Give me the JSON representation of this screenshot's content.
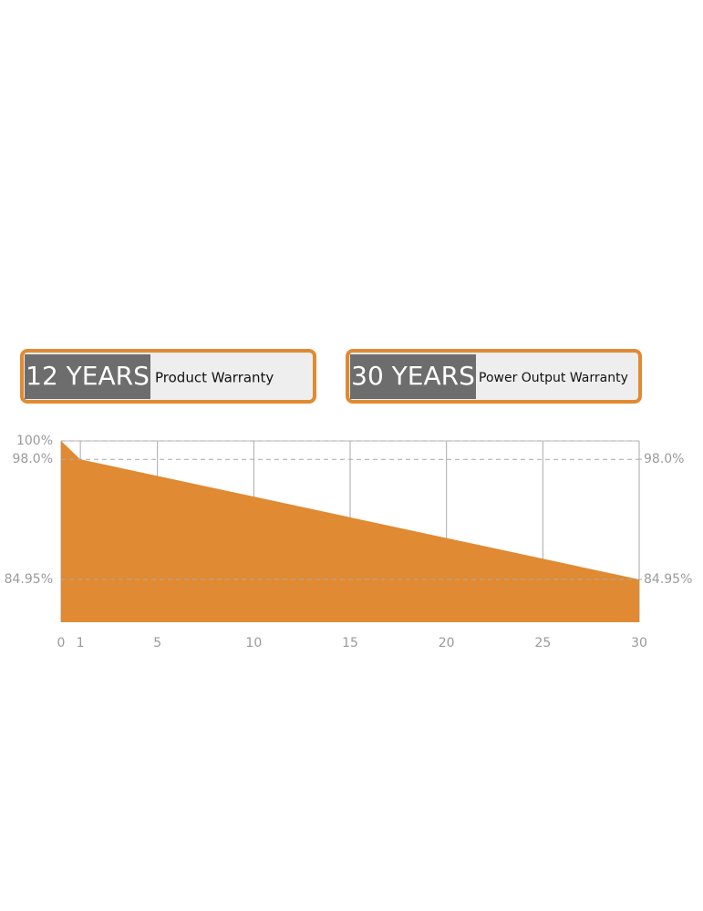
{
  "badges": [
    {
      "years": "12 YEARS",
      "label": "Product Warranty"
    },
    {
      "years": "30 YEARS",
      "label": "Power Output Warranty"
    }
  ],
  "chart_data": {
    "type": "area",
    "x": [
      0,
      1,
      30
    ],
    "values": [
      100,
      98.0,
      84.95
    ],
    "color": "#e08a33",
    "xlim": [
      0,
      30
    ],
    "xticks": [
      0,
      1,
      5,
      10,
      15,
      20,
      25,
      30
    ],
    "ylim": [
      80.3,
      100
    ],
    "yticks": [
      {
        "value": 100,
        "label": "100%"
      },
      {
        "value": 98.0,
        "label": "98.0%"
      },
      {
        "value": 84.95,
        "label": "84.95%"
      }
    ],
    "y2lim": [
      80.3,
      100
    ],
    "y2ticks": [
      {
        "value": 98.0,
        "label": "98.0%"
      },
      {
        "value": 84.95,
        "label": "84.95%"
      }
    ],
    "grid": true
  }
}
